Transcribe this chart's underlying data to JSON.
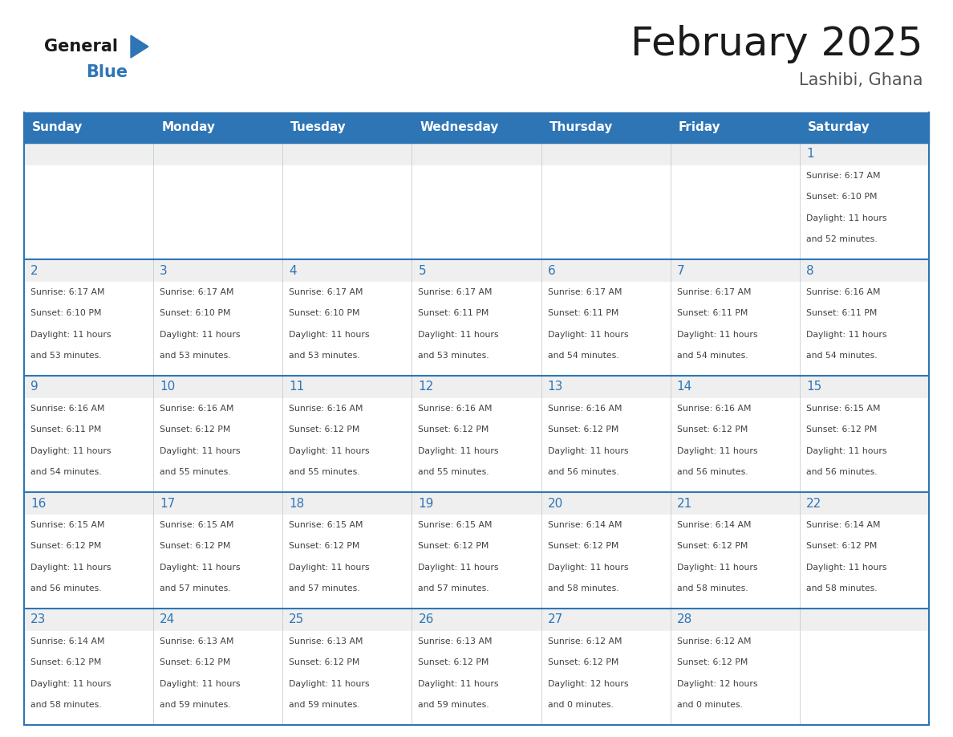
{
  "title": "February 2025",
  "subtitle": "Lashibi, Ghana",
  "days_of_week": [
    "Sunday",
    "Monday",
    "Tuesday",
    "Wednesday",
    "Thursday",
    "Friday",
    "Saturday"
  ],
  "header_bg_color": "#2E75B6",
  "header_text_color": "#FFFFFF",
  "cell_bg_color": "#FFFFFF",
  "cell_top_bg_color": "#EFEFEF",
  "grid_color": "#2E75B6",
  "grid_line_color": "#B8C4D0",
  "day_number_color": "#2E75B6",
  "info_text_color": "#404040",
  "title_color": "#1A1A1A",
  "subtitle_color": "#555555",
  "logo_general_color": "#1A1A1A",
  "logo_blue_color": "#2E75B6",
  "calendar": [
    [
      null,
      null,
      null,
      null,
      null,
      null,
      {
        "day": 1,
        "sunrise": "6:17 AM",
        "sunset": "6:10 PM",
        "daylight_hours": 11,
        "daylight_minutes": 52
      }
    ],
    [
      {
        "day": 2,
        "sunrise": "6:17 AM",
        "sunset": "6:10 PM",
        "daylight_hours": 11,
        "daylight_minutes": 53
      },
      {
        "day": 3,
        "sunrise": "6:17 AM",
        "sunset": "6:10 PM",
        "daylight_hours": 11,
        "daylight_minutes": 53
      },
      {
        "day": 4,
        "sunrise": "6:17 AM",
        "sunset": "6:10 PM",
        "daylight_hours": 11,
        "daylight_minutes": 53
      },
      {
        "day": 5,
        "sunrise": "6:17 AM",
        "sunset": "6:11 PM",
        "daylight_hours": 11,
        "daylight_minutes": 53
      },
      {
        "day": 6,
        "sunrise": "6:17 AM",
        "sunset": "6:11 PM",
        "daylight_hours": 11,
        "daylight_minutes": 54
      },
      {
        "day": 7,
        "sunrise": "6:17 AM",
        "sunset": "6:11 PM",
        "daylight_hours": 11,
        "daylight_minutes": 54
      },
      {
        "day": 8,
        "sunrise": "6:16 AM",
        "sunset": "6:11 PM",
        "daylight_hours": 11,
        "daylight_minutes": 54
      }
    ],
    [
      {
        "day": 9,
        "sunrise": "6:16 AM",
        "sunset": "6:11 PM",
        "daylight_hours": 11,
        "daylight_minutes": 54
      },
      {
        "day": 10,
        "sunrise": "6:16 AM",
        "sunset": "6:12 PM",
        "daylight_hours": 11,
        "daylight_minutes": 55
      },
      {
        "day": 11,
        "sunrise": "6:16 AM",
        "sunset": "6:12 PM",
        "daylight_hours": 11,
        "daylight_minutes": 55
      },
      {
        "day": 12,
        "sunrise": "6:16 AM",
        "sunset": "6:12 PM",
        "daylight_hours": 11,
        "daylight_minutes": 55
      },
      {
        "day": 13,
        "sunrise": "6:16 AM",
        "sunset": "6:12 PM",
        "daylight_hours": 11,
        "daylight_minutes": 56
      },
      {
        "day": 14,
        "sunrise": "6:16 AM",
        "sunset": "6:12 PM",
        "daylight_hours": 11,
        "daylight_minutes": 56
      },
      {
        "day": 15,
        "sunrise": "6:15 AM",
        "sunset": "6:12 PM",
        "daylight_hours": 11,
        "daylight_minutes": 56
      }
    ],
    [
      {
        "day": 16,
        "sunrise": "6:15 AM",
        "sunset": "6:12 PM",
        "daylight_hours": 11,
        "daylight_minutes": 56
      },
      {
        "day": 17,
        "sunrise": "6:15 AM",
        "sunset": "6:12 PM",
        "daylight_hours": 11,
        "daylight_minutes": 57
      },
      {
        "day": 18,
        "sunrise": "6:15 AM",
        "sunset": "6:12 PM",
        "daylight_hours": 11,
        "daylight_minutes": 57
      },
      {
        "day": 19,
        "sunrise": "6:15 AM",
        "sunset": "6:12 PM",
        "daylight_hours": 11,
        "daylight_minutes": 57
      },
      {
        "day": 20,
        "sunrise": "6:14 AM",
        "sunset": "6:12 PM",
        "daylight_hours": 11,
        "daylight_minutes": 58
      },
      {
        "day": 21,
        "sunrise": "6:14 AM",
        "sunset": "6:12 PM",
        "daylight_hours": 11,
        "daylight_minutes": 58
      },
      {
        "day": 22,
        "sunrise": "6:14 AM",
        "sunset": "6:12 PM",
        "daylight_hours": 11,
        "daylight_minutes": 58
      }
    ],
    [
      {
        "day": 23,
        "sunrise": "6:14 AM",
        "sunset": "6:12 PM",
        "daylight_hours": 11,
        "daylight_minutes": 58
      },
      {
        "day": 24,
        "sunrise": "6:13 AM",
        "sunset": "6:12 PM",
        "daylight_hours": 11,
        "daylight_minutes": 59
      },
      {
        "day": 25,
        "sunrise": "6:13 AM",
        "sunset": "6:12 PM",
        "daylight_hours": 11,
        "daylight_minutes": 59
      },
      {
        "day": 26,
        "sunrise": "6:13 AM",
        "sunset": "6:12 PM",
        "daylight_hours": 11,
        "daylight_minutes": 59
      },
      {
        "day": 27,
        "sunrise": "6:12 AM",
        "sunset": "6:12 PM",
        "daylight_hours": 12,
        "daylight_minutes": 0
      },
      {
        "day": 28,
        "sunrise": "6:12 AM",
        "sunset": "6:12 PM",
        "daylight_hours": 12,
        "daylight_minutes": 0
      },
      null
    ]
  ]
}
